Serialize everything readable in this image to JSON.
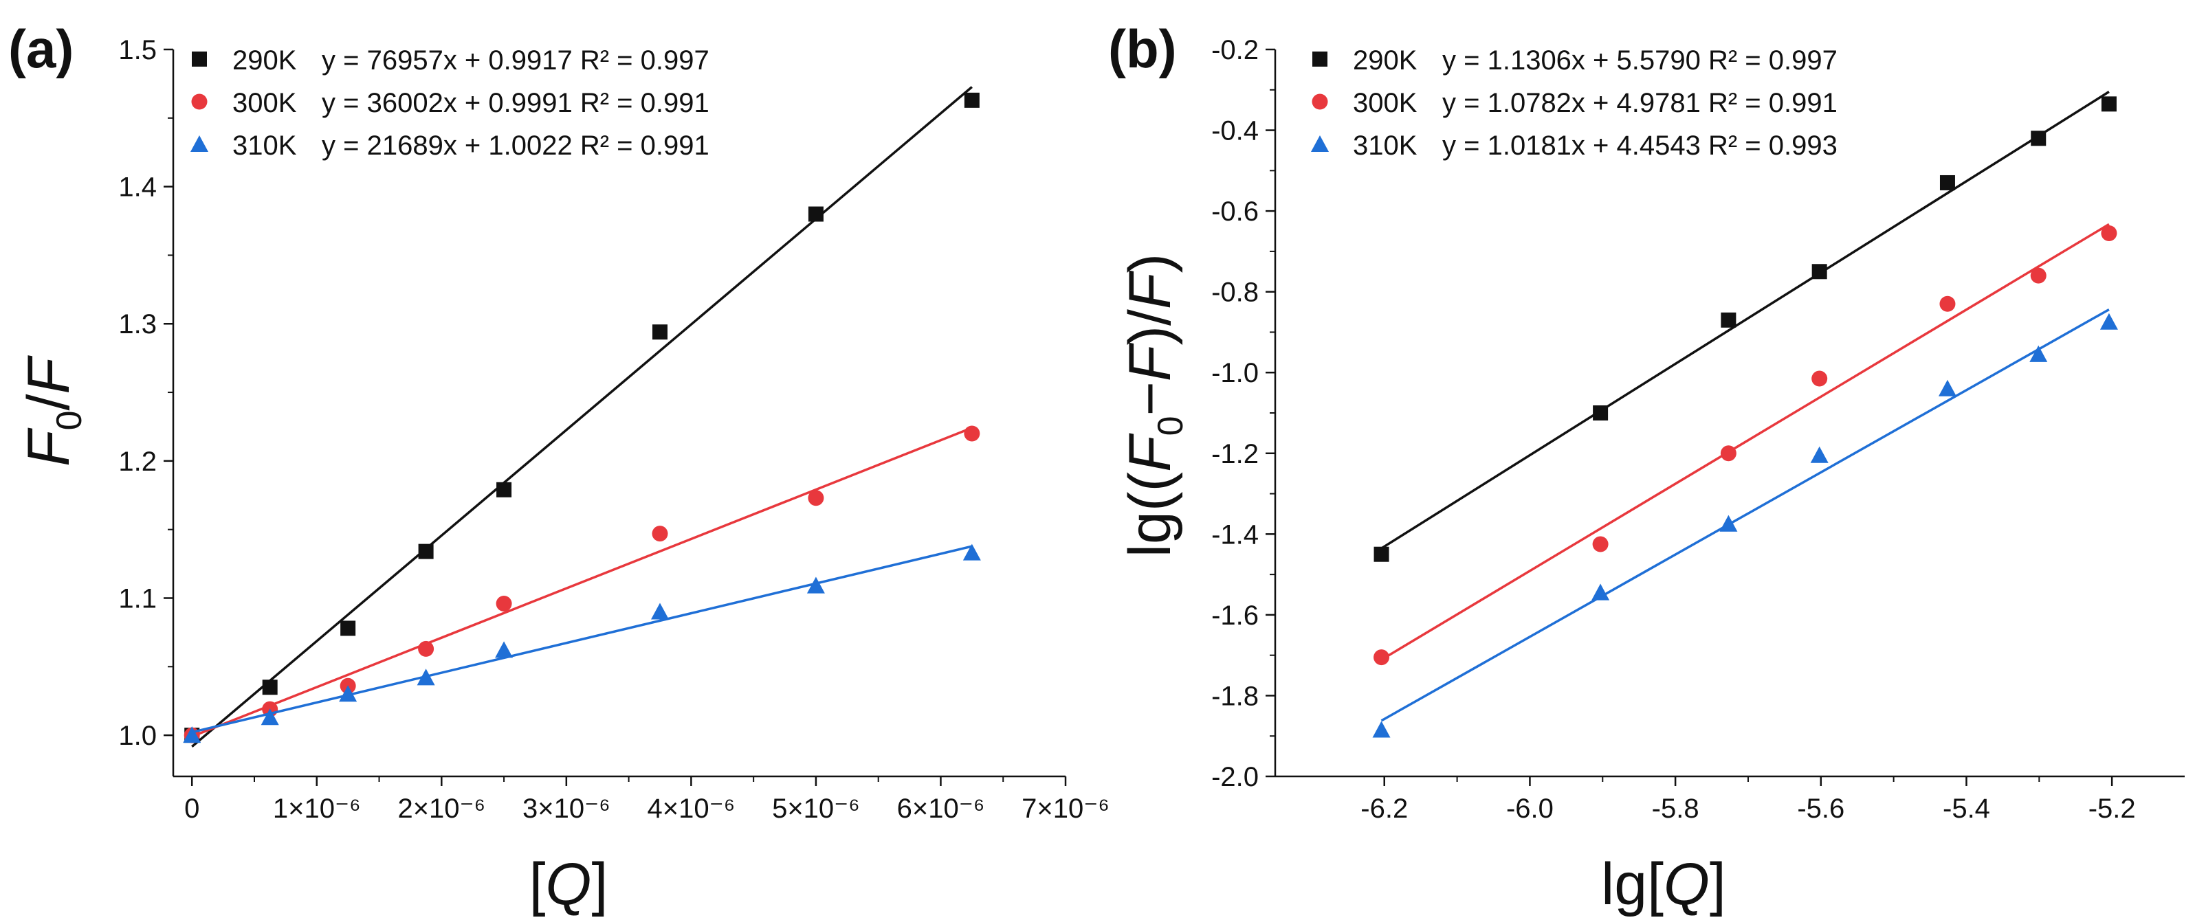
{
  "chart_data": [
    {
      "type": "scatter",
      "panel_label": "(a)",
      "xlabel": "[Q]",
      "ylabel": "F0/F",
      "xlim": [
        -1.5e-07,
        7e-06
      ],
      "ylim": [
        0.97,
        1.5
      ],
      "x_ticks": [
        0,
        1e-06,
        2e-06,
        3e-06,
        4e-06,
        5e-06,
        6e-06,
        7e-06
      ],
      "x_tick_labels": [
        "0",
        "1×10⁻⁶",
        "2×10⁻⁶",
        "3×10⁻⁶",
        "4×10⁻⁶",
        "5×10⁻⁶",
        "6×10⁻⁶",
        "7×10⁻⁶"
      ],
      "y_ticks": [
        1.0,
        1.1,
        1.2,
        1.3,
        1.4,
        1.5
      ],
      "y_tick_labels": [
        "1.0",
        "1.1",
        "1.2",
        "1.3",
        "1.4",
        "1.5"
      ],
      "grid": false,
      "legend_position": "top-left",
      "fit_range": [
        0,
        6.25e-06
      ],
      "series": [
        {
          "name": "290K",
          "equation": "y = 76957x + 0.9917 R² = 0.997",
          "marker": "square",
          "color": "#111111",
          "slope": 76957,
          "intercept": 0.9917,
          "x": [
            0,
            6.25e-07,
            1.25e-06,
            1.875e-06,
            2.5e-06,
            3.75e-06,
            5e-06,
            6.25e-06
          ],
          "y": [
            1.0,
            1.035,
            1.078,
            1.134,
            1.179,
            1.294,
            1.38,
            1.463
          ]
        },
        {
          "name": "300K",
          "equation": "y = 36002x + 0.9991 R² = 0.991",
          "marker": "circle",
          "color": "#e8383d",
          "slope": 36002,
          "intercept": 0.9991,
          "x": [
            0,
            6.25e-07,
            1.25e-06,
            1.875e-06,
            2.5e-06,
            3.75e-06,
            5e-06,
            6.25e-06
          ],
          "y": [
            1.0,
            1.019,
            1.036,
            1.063,
            1.096,
            1.147,
            1.173,
            1.22
          ]
        },
        {
          "name": "310K",
          "equation": "y = 21689x + 1.0022 R² = 0.991",
          "marker": "triangle",
          "color": "#1f6fd6",
          "slope": 21689,
          "intercept": 1.0022,
          "x": [
            0,
            6.25e-07,
            1.25e-06,
            1.875e-06,
            2.5e-06,
            3.75e-06,
            5e-06,
            6.25e-06
          ],
          "y": [
            1.0,
            1.013,
            1.03,
            1.042,
            1.062,
            1.09,
            1.109,
            1.133
          ]
        }
      ]
    },
    {
      "type": "scatter",
      "panel_label": "(b)",
      "xlabel": "lg[Q]",
      "ylabel": "lg((F0−F)/F)",
      "xlim": [
        -6.35,
        -5.1
      ],
      "ylim": [
        -2.0,
        -0.2
      ],
      "x_ticks": [
        -6.2,
        -6.0,
        -5.8,
        -5.6,
        -5.4,
        -5.2
      ],
      "x_tick_labels": [
        "-6.2",
        "-6.0",
        "-5.8",
        "-5.6",
        "-5.4",
        "-5.2"
      ],
      "y_ticks": [
        -2.0,
        -1.8,
        -1.6,
        -1.4,
        -1.2,
        -1.0,
        -0.8,
        -0.6,
        -0.4,
        -0.2
      ],
      "y_tick_labels": [
        "-2.0",
        "-1.8",
        "-1.6",
        "-1.4",
        "-1.2",
        "-1.0",
        "-0.8",
        "-0.6",
        "-0.4",
        "-0.2"
      ],
      "grid": false,
      "legend_position": "top-left",
      "fit_range": [
        -6.204,
        -5.204
      ],
      "series": [
        {
          "name": "290K",
          "equation": "y = 1.1306x + 5.5790  R² = 0.997",
          "marker": "square",
          "color": "#111111",
          "slope": 1.1306,
          "intercept": 5.579,
          "x": [
            -6.204,
            -5.903,
            -5.727,
            -5.602,
            -5.426,
            -5.301,
            -5.204
          ],
          "y": [
            -1.45,
            -1.1,
            -0.87,
            -0.75,
            -0.53,
            -0.42,
            -0.335
          ]
        },
        {
          "name": "300K",
          "equation": "y = 1.0782x + 4.9781  R² = 0.991",
          "marker": "circle",
          "color": "#e8383d",
          "slope": 1.0782,
          "intercept": 4.9781,
          "x": [
            -6.204,
            -5.903,
            -5.727,
            -5.602,
            -5.426,
            -5.301,
            -5.204
          ],
          "y": [
            -1.705,
            -1.425,
            -1.2,
            -1.015,
            -0.83,
            -0.76,
            -0.655
          ]
        },
        {
          "name": "310K",
          "equation": "y = 1.0181x + 4.4543  R² = 0.993",
          "marker": "triangle",
          "color": "#1f6fd6",
          "slope": 1.0181,
          "intercept": 4.4543,
          "x": [
            -6.204,
            -5.903,
            -5.727,
            -5.602,
            -5.426,
            -5.301,
            -5.204
          ],
          "y": [
            -1.885,
            -1.545,
            -1.375,
            -1.205,
            -1.04,
            -0.955,
            -0.875
          ]
        }
      ]
    }
  ]
}
